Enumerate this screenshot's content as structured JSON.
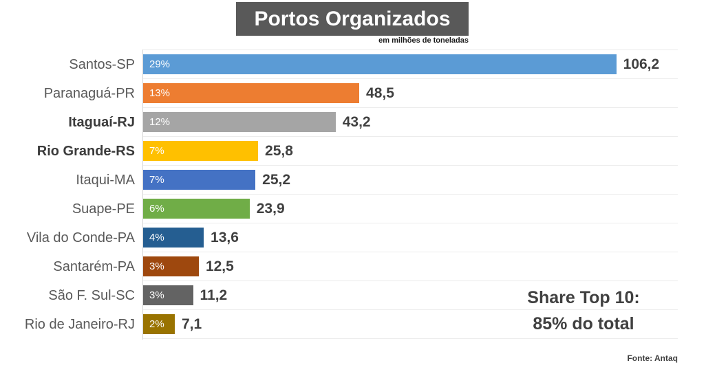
{
  "header": {
    "title": "Portos Organizados",
    "subtitle": "em milhões de toneladas",
    "title_bg_color": "#595959",
    "title_text_color": "#ffffff"
  },
  "annotation": {
    "line1": "Share Top 10:",
    "line2": "85% do total"
  },
  "source": "Fonte: Antaq",
  "chart_data": {
    "type": "bar",
    "orientation": "horizontal",
    "title": "Portos Organizados",
    "subtitle": "em milhões de toneladas",
    "categories": [
      "Santos-SP",
      "Paranaguá-PR",
      "Itaguaí-RJ",
      "Rio Grande-RS",
      "Itaqui-MA",
      "Suape-PE",
      "Vila do Conde-PA",
      "Santarém-PA",
      "São F. Sul-SC",
      "Rio de Janeiro-RJ"
    ],
    "values": [
      106.2,
      48.5,
      43.2,
      25.8,
      25.2,
      23.9,
      13.6,
      12.5,
      11.2,
      7.1
    ],
    "value_labels": [
      "106,2",
      "48,5",
      "43,2",
      "25,8",
      "25,2",
      "23,9",
      "13,6",
      "12,5",
      "11,2",
      "7,1"
    ],
    "percent_labels": [
      "29%",
      "13%",
      "12%",
      "7%",
      "7%",
      "6%",
      "4%",
      "3%",
      "3%",
      "2%"
    ],
    "bar_colors": [
      "#5B9BD5",
      "#ED7D31",
      "#A5A5A5",
      "#FFC000",
      "#4472C4",
      "#70AD47",
      "#255E91",
      "#9E480E",
      "#636363",
      "#997300"
    ],
    "bold_category_indices": [
      2,
      3
    ],
    "xlim": [
      0,
      120
    ],
    "grid": "row-separator-lines",
    "legend": "none",
    "annotation": "Share Top 10: 85% do total",
    "source": "Fonte: Antaq"
  }
}
